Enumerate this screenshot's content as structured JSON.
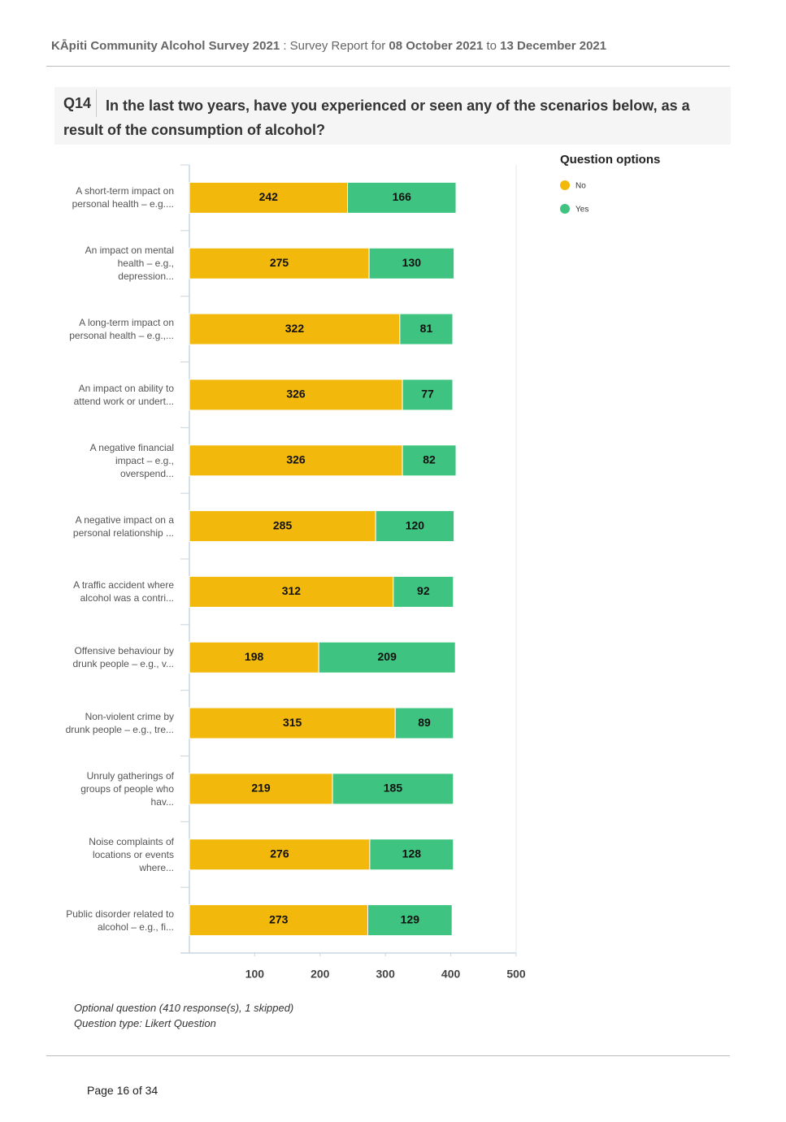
{
  "header": {
    "survey": "KĀpiti Community Alcohol Survey 2021",
    "report": ": Survey Report for",
    "start": "08 October 2021",
    "to": "to",
    "end": "13 December 2021"
  },
  "question": {
    "number": "Q14",
    "text": "In the last two years, have you experienced or seen any of the scenarios below, as a result of the consumption of alcohol?"
  },
  "chart_data": {
    "type": "bar",
    "orientation": "horizontal",
    "stacked": true,
    "legend_title": "Question options",
    "legend": "right",
    "categories": [
      "A short-term impact on personal health – e.g....",
      "An impact on mental health – e.g., depression...",
      "A long-term impact on personal health – e.g.,...",
      "An impact on ability to attend work or undert...",
      "A negative financial impact – e.g., overspend...",
      "A negative impact on a personal relationship ...",
      "A traffic accident where alcohol was a contri...",
      "Offensive behaviour by drunk people – e.g., v...",
      "Non-violent crime by drunk people – e.g., tre...",
      "Unruly gatherings of groups of people who hav...",
      "Noise complaints of locations or events where...",
      "Public disorder related to alcohol – e.g., fi..."
    ],
    "series": [
      {
        "name": "No",
        "color": "#f2b80c",
        "values": [
          242,
          275,
          322,
          326,
          326,
          285,
          312,
          198,
          315,
          219,
          276,
          273
        ]
      },
      {
        "name": "Yes",
        "color": "#3fc380",
        "values": [
          166,
          130,
          81,
          77,
          82,
          120,
          92,
          209,
          89,
          185,
          128,
          129
        ]
      }
    ],
    "xlim": [
      0,
      500
    ],
    "xticks": [
      100,
      200,
      300,
      400,
      500
    ]
  },
  "notes": [
    "Optional question (410 response(s), 1 skipped)",
    "Question type: Likert Question"
  ],
  "footer": "Page 16 of 34"
}
